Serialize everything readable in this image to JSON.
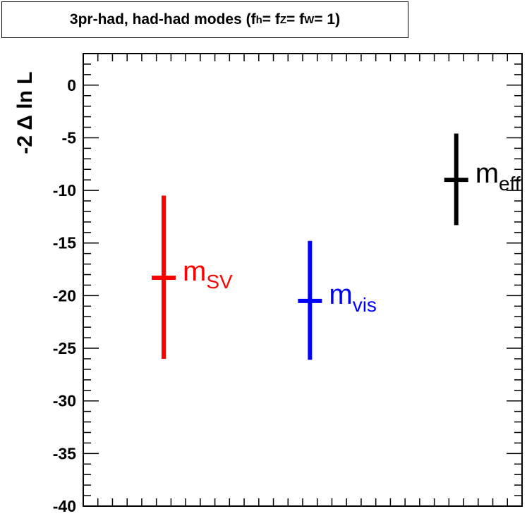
{
  "chart_data": {
    "type": "scatter",
    "title": {
      "prefix": "3pr-had, had-had modes (f",
      "sub1": "h",
      "mid1": " = f",
      "sub2": "Z",
      "mid2": " = f",
      "sub3": "W",
      "suffix": " = 1)"
    },
    "ylabel": "-2 Δ ln L",
    "ylim": [
      -40,
      3
    ],
    "yticks": [
      0,
      -5,
      -10,
      -15,
      -20,
      -25,
      -30,
      -35,
      -40
    ],
    "ytick_labels": [
      "0",
      "-5",
      "-10",
      "-15",
      "-20",
      "-25",
      "-30",
      "-35",
      "-40"
    ],
    "xlim": [
      0,
      3
    ],
    "series": [
      {
        "label_main": "m",
        "label_sub": "SV",
        "x": 0.55,
        "y": -18.3,
        "y_low": -26.0,
        "y_high": -10.5,
        "color": "#ff0000"
      },
      {
        "label_main": "m",
        "label_sub": "vis",
        "x": 1.55,
        "y": -20.5,
        "y_low": -26.1,
        "y_high": -14.8,
        "color": "#0000ff"
      },
      {
        "label_main": "m",
        "label_sub": "eff",
        "x": 2.55,
        "y": -9.0,
        "y_low": -13.3,
        "y_high": -4.6,
        "color": "#000000"
      }
    ]
  }
}
